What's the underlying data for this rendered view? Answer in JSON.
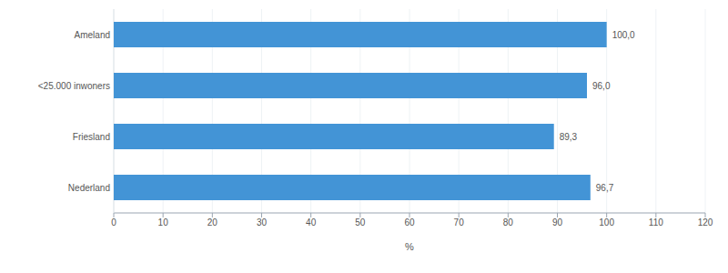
{
  "chart_data": {
    "type": "bar",
    "orientation": "horizontal",
    "categories": [
      "Ameland",
      "<25.000 inwoners",
      "Friesland",
      "Nederland"
    ],
    "values": [
      100.0,
      96.0,
      89.3,
      96.7
    ],
    "value_labels": [
      "100,0",
      "96,0",
      "89,3",
      "96,7"
    ],
    "data_labels": true,
    "color": "#4394d6",
    "x_label": "%",
    "xlim": [
      0,
      120
    ],
    "xticks": [
      0,
      10,
      20,
      30,
      40,
      50,
      60,
      70,
      80,
      90,
      100,
      110,
      120
    ],
    "grid": true
  }
}
